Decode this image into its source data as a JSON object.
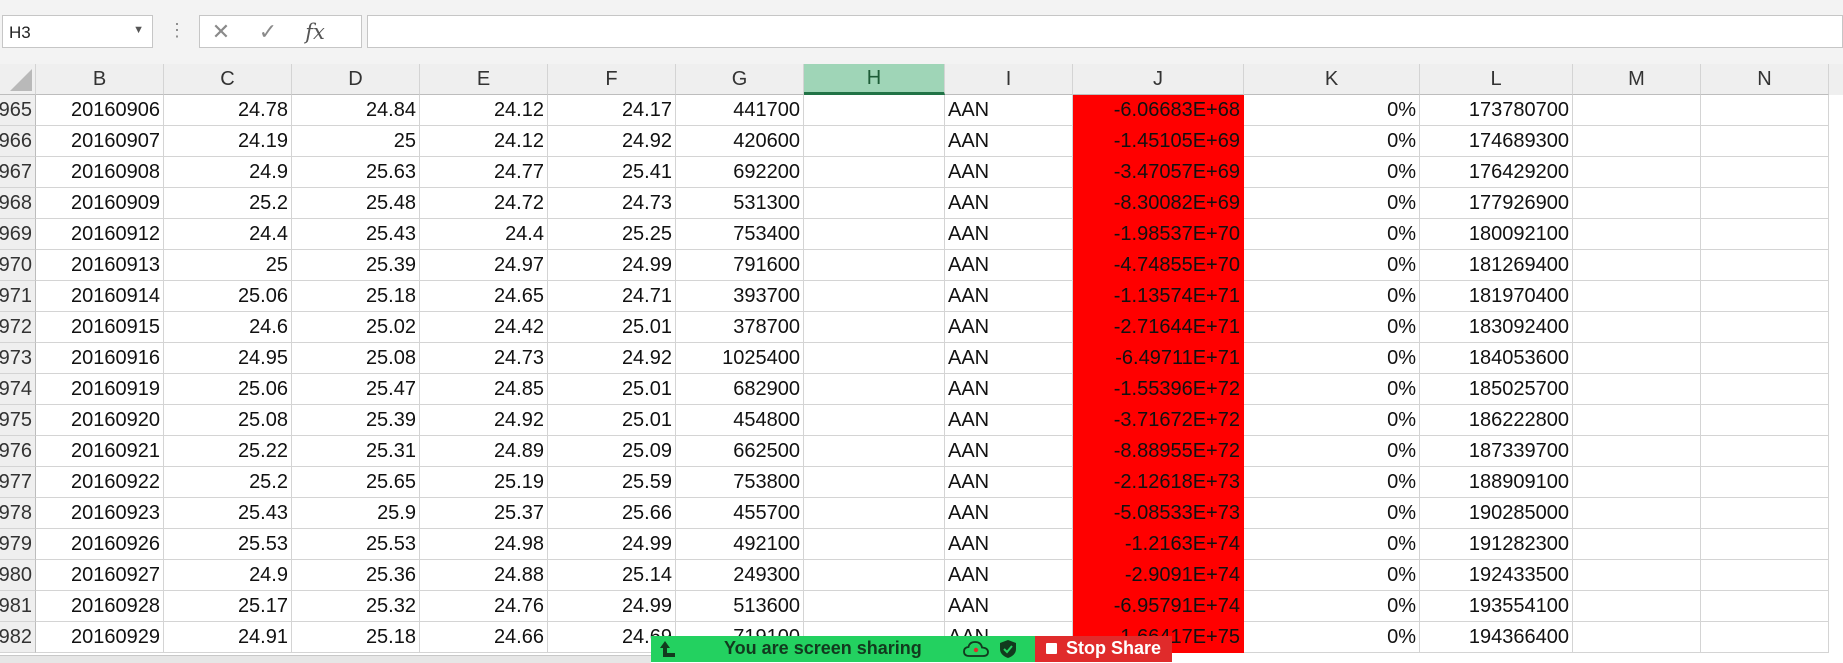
{
  "formula_bar": {
    "name_box": "H3",
    "formula": ""
  },
  "columns": [
    "B",
    "C",
    "D",
    "E",
    "F",
    "G",
    "H",
    "I",
    "J",
    "K",
    "L",
    "M",
    "N"
  ],
  "selected_column": "H",
  "colors": {
    "highlight_column": "#ff0000",
    "selected_header": "#9fd5b7",
    "share_green": "#23d160",
    "stop_red": "#e02b2b"
  },
  "rows": [
    {
      "n": "965",
      "B": "20160906",
      "C": "24.78",
      "D": "24.84",
      "E": "24.12",
      "F": "24.17",
      "G": "441700",
      "H": "",
      "I": "AAN",
      "J": "-6.06683E+68",
      "K": "0%",
      "L": "173780700"
    },
    {
      "n": "966",
      "B": "20160907",
      "C": "24.19",
      "D": "25",
      "E": "24.12",
      "F": "24.92",
      "G": "420600",
      "H": "",
      "I": "AAN",
      "J": "-1.45105E+69",
      "K": "0%",
      "L": "174689300"
    },
    {
      "n": "967",
      "B": "20160908",
      "C": "24.9",
      "D": "25.63",
      "E": "24.77",
      "F": "25.41",
      "G": "692200",
      "H": "",
      "I": "AAN",
      "J": "-3.47057E+69",
      "K": "0%",
      "L": "176429200"
    },
    {
      "n": "968",
      "B": "20160909",
      "C": "25.2",
      "D": "25.48",
      "E": "24.72",
      "F": "24.73",
      "G": "531300",
      "H": "",
      "I": "AAN",
      "J": "-8.30082E+69",
      "K": "0%",
      "L": "177926900"
    },
    {
      "n": "969",
      "B": "20160912",
      "C": "24.4",
      "D": "25.43",
      "E": "24.4",
      "F": "25.25",
      "G": "753400",
      "H": "",
      "I": "AAN",
      "J": "-1.98537E+70",
      "K": "0%",
      "L": "180092100"
    },
    {
      "n": "970",
      "B": "20160913",
      "C": "25",
      "D": "25.39",
      "E": "24.97",
      "F": "24.99",
      "G": "791600",
      "H": "",
      "I": "AAN",
      "J": "-4.74855E+70",
      "K": "0%",
      "L": "181269400"
    },
    {
      "n": "971",
      "B": "20160914",
      "C": "25.06",
      "D": "25.18",
      "E": "24.65",
      "F": "24.71",
      "G": "393700",
      "H": "",
      "I": "AAN",
      "J": "-1.13574E+71",
      "K": "0%",
      "L": "181970400"
    },
    {
      "n": "972",
      "B": "20160915",
      "C": "24.6",
      "D": "25.02",
      "E": "24.42",
      "F": "25.01",
      "G": "378700",
      "H": "",
      "I": "AAN",
      "J": "-2.71644E+71",
      "K": "0%",
      "L": "183092400"
    },
    {
      "n": "973",
      "B": "20160916",
      "C": "24.95",
      "D": "25.08",
      "E": "24.73",
      "F": "24.92",
      "G": "1025400",
      "H": "",
      "I": "AAN",
      "J": "-6.49711E+71",
      "K": "0%",
      "L": "184053600"
    },
    {
      "n": "974",
      "B": "20160919",
      "C": "25.06",
      "D": "25.47",
      "E": "24.85",
      "F": "25.01",
      "G": "682900",
      "H": "",
      "I": "AAN",
      "J": "-1.55396E+72",
      "K": "0%",
      "L": "185025700"
    },
    {
      "n": "975",
      "B": "20160920",
      "C": "25.08",
      "D": "25.39",
      "E": "24.92",
      "F": "25.01",
      "G": "454800",
      "H": "",
      "I": "AAN",
      "J": "-3.71672E+72",
      "K": "0%",
      "L": "186222800"
    },
    {
      "n": "976",
      "B": "20160921",
      "C": "25.22",
      "D": "25.31",
      "E": "24.89",
      "F": "25.09",
      "G": "662500",
      "H": "",
      "I": "AAN",
      "J": "-8.88955E+72",
      "K": "0%",
      "L": "187339700"
    },
    {
      "n": "977",
      "B": "20160922",
      "C": "25.2",
      "D": "25.65",
      "E": "25.19",
      "F": "25.59",
      "G": "753800",
      "H": "",
      "I": "AAN",
      "J": "-2.12618E+73",
      "K": "0%",
      "L": "188909100"
    },
    {
      "n": "978",
      "B": "20160923",
      "C": "25.43",
      "D": "25.9",
      "E": "25.37",
      "F": "25.66",
      "G": "455700",
      "H": "",
      "I": "AAN",
      "J": "-5.08533E+73",
      "K": "0%",
      "L": "190285000"
    },
    {
      "n": "979",
      "B": "20160926",
      "C": "25.53",
      "D": "25.53",
      "E": "24.98",
      "F": "24.99",
      "G": "492100",
      "H": "",
      "I": "AAN",
      "J": "-1.2163E+74",
      "K": "0%",
      "L": "191282300"
    },
    {
      "n": "980",
      "B": "20160927",
      "C": "24.9",
      "D": "25.36",
      "E": "24.88",
      "F": "25.14",
      "G": "249300",
      "H": "",
      "I": "AAN",
      "J": "-2.9091E+74",
      "K": "0%",
      "L": "192433500"
    },
    {
      "n": "981",
      "B": "20160928",
      "C": "25.17",
      "D": "25.32",
      "E": "24.76",
      "F": "24.99",
      "G": "513600",
      "H": "",
      "I": "AAN",
      "J": "-6.95791E+74",
      "K": "0%",
      "L": "193554100"
    },
    {
      "n": "982",
      "B": "20160929",
      "C": "24.91",
      "D": "25.18",
      "E": "24.66",
      "F": "24.69",
      "G": "719100",
      "H": "",
      "I": "AAN",
      "J": "-1.66417E+75",
      "K": "0%",
      "L": "194366400"
    }
  ],
  "share_bar": {
    "status_text": "You are screen sharing",
    "stop_label": "Stop Share"
  }
}
